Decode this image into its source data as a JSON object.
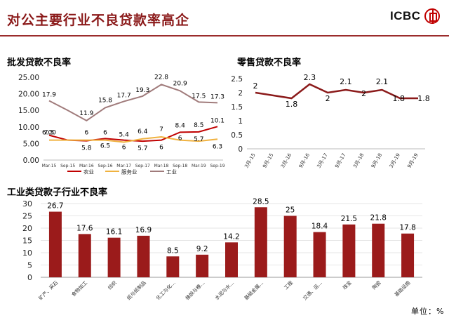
{
  "page": {
    "title": "对公主要行业不良贷款率高企",
    "logo_text": "ICBC",
    "unit_note": "单位：%"
  },
  "colors": {
    "brand": "#8b1a1a",
    "logo_red": "#c00000",
    "agriculture": "#c00000",
    "services": "#f0b240",
    "industry": "#a07b7b",
    "retail": "#8b1a1a",
    "bars": "#9b1b1b"
  },
  "chart_data": [
    {
      "type": "line",
      "title": "批发贷款不良率",
      "x": [
        "Mar-15",
        "Sep-15",
        "Mar-16",
        "Sep-16",
        "Mar-17",
        "Sep-17",
        "Mar-18",
        "Sep-18",
        "Mar-19",
        "Sep-19"
      ],
      "ylim": [
        0,
        25
      ],
      "yticks": [
        "0.00",
        "5.00",
        "10.00",
        "15.00",
        "20.00",
        "25.00"
      ],
      "legend_position": "bottom",
      "series": [
        {
          "name": "农业",
          "values": [
            7.5,
            6.0,
            5.8,
            6.5,
            6.0,
            5.7,
            6.0,
            8.4,
            8.5,
            10.1
          ],
          "labels": [
            "7.5",
            "",
            "5.8",
            "6.5",
            "6",
            "5.7",
            "6",
            "",
            "",
            "10.1"
          ]
        },
        {
          "name": "服务业",
          "values": [
            6.0,
            6.0,
            6.0,
            6.0,
            5.4,
            6.4,
            7.0,
            6.0,
            5.7,
            6.3
          ],
          "labels": [
            "6.00",
            "",
            "6",
            "6",
            "5.4",
            "6.4",
            "7",
            "6",
            "5.7",
            "6.3"
          ]
        },
        {
          "name": "工业",
          "values": [
            17.9,
            15.0,
            11.9,
            15.8,
            17.7,
            19.3,
            22.8,
            20.9,
            17.5,
            17.3
          ],
          "labels": [
            "17.9",
            "",
            "11.9",
            "15.8",
            "17.7",
            "19.3",
            "22.8",
            "20.9",
            "17.5",
            "17.3"
          ]
        }
      ],
      "extra_labels": [
        "8.4",
        "8.5"
      ]
    },
    {
      "type": "line",
      "title": "零售贷款不良率",
      "x": [
        "3月-15",
        "9月-15",
        "3月-16",
        "9月-16",
        "3月-17",
        "9月-17",
        "3月-18",
        "9月-18",
        "3月-19",
        "9月-19"
      ],
      "ylim": [
        0,
        2.5
      ],
      "yticks": [
        "0",
        "0.5",
        "1",
        "1.5",
        "2",
        "2.5"
      ],
      "series": [
        {
          "values": [
            2.0,
            1.9,
            1.8,
            2.3,
            2.0,
            2.1,
            2.0,
            2.1,
            1.8,
            1.8
          ],
          "labels": [
            "2",
            "",
            "1.8",
            "2.3",
            "2",
            "2.1",
            "2",
            "2.1",
            "1.8",
            "1.8"
          ]
        }
      ]
    },
    {
      "type": "bar",
      "title": "工业类贷款子行业不良率",
      "categories": [
        "矿产、采石",
        "食物加工",
        "纺织",
        "纸与纸制品",
        "化工与化…",
        "橡胶与橡…",
        "水泥与水…",
        "基础金属…",
        "工程",
        "交通、运…",
        "珠宝",
        "陶瓷",
        "基础设施"
      ],
      "values": [
        26.7,
        17.6,
        16.1,
        16.9,
        8.5,
        9.2,
        14.2,
        28.5,
        25,
        18.4,
        21.5,
        21.8,
        17.8
      ],
      "labels": [
        "26.7",
        "17.6",
        "16.1",
        "16.9",
        "8.5",
        "9.2",
        "14.2",
        "28.5",
        "25",
        "18.4",
        "21.5",
        "21.8",
        "17.8"
      ],
      "ylim": [
        0,
        30
      ],
      "yticks": [
        "0",
        "5",
        "10",
        "15",
        "20",
        "25",
        "30"
      ]
    }
  ]
}
